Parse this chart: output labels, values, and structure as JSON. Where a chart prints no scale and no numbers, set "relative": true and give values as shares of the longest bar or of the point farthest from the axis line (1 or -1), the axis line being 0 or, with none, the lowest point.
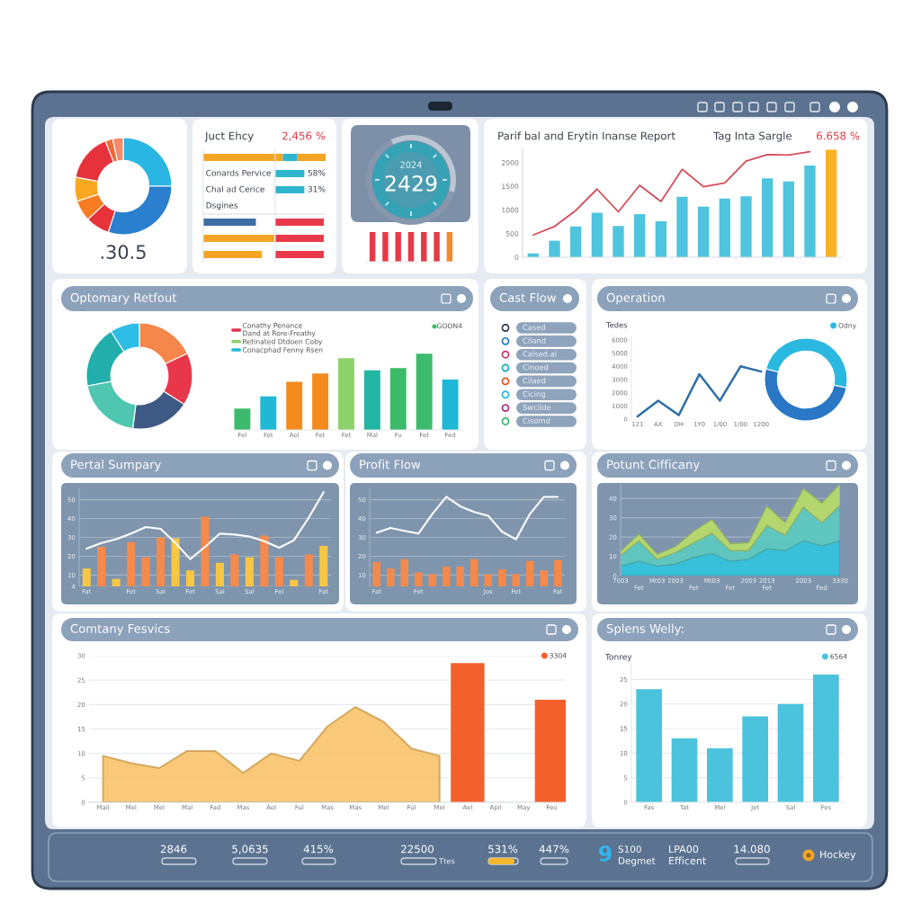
{
  "chart_data": [
    {
      "type": "donut",
      "categories": [
        null,
        null,
        null,
        null,
        null,
        null,
        null,
        null
      ],
      "values": [
        25,
        30,
        8,
        7,
        8,
        16,
        2.5,
        3.5
      ],
      "colors": [
        "#29b6e3",
        "#2b7fcf",
        "#e8333a",
        "#f57c20",
        "#f9a620",
        "#e5323b",
        "#f26b3a",
        "#f58b6c"
      ],
      "annotations": [
        ".30.5"
      ]
    },
    {
      "type": "bar",
      "orientation": "horizontal",
      "stacked": true,
      "relative": true,
      "title": "Juct Ehcy",
      "subtitle": "2,456 %",
      "categories": [
        null,
        "Conards Pervice",
        "Chal ad Cerice",
        "Dsgines",
        null,
        null,
        null
      ],
      "series": [
        {
          "color": "#f5a524",
          "values": [
            0.65,
            null,
            null,
            null,
            null,
            0.58,
            0.48
          ]
        },
        {
          "color": "#3d6fa6",
          "values": [
            null,
            null,
            null,
            null,
            0.43,
            null,
            null
          ]
        },
        {
          "color": "#2fb6cf",
          "values": [
            0.12,
            null,
            null,
            null,
            null,
            null,
            null
          ]
        },
        {
          "color": "#f5a524",
          "values": [
            0.23,
            null,
            null,
            null,
            null,
            null,
            null
          ]
        }
      ]
    },
    {
      "type": "bar",
      "orientation": "horizontal",
      "relative": true,
      "categories": [
        null,
        null,
        null,
        null,
        null,
        null,
        null
      ],
      "series": [
        {
          "color": "#2fb6cf",
          "values": [
            null,
            0.6,
            0.6,
            null,
            null,
            null,
            null
          ]
        },
        {
          "color": "#e8394a",
          "values": [
            null,
            null,
            null,
            null,
            1,
            1,
            1
          ]
        }
      ],
      "annotations": [
        "58%",
        "31%"
      ]
    },
    {
      "type": "donut",
      "categories": [
        null,
        null
      ],
      "values": [
        37,
        63
      ],
      "colors": [
        "#bcc6d3",
        "#8798ae"
      ],
      "annotations": [
        "2024",
        "2429"
      ]
    },
    {
      "type": "bar",
      "relative": true,
      "categories": [
        null,
        null,
        null,
        null,
        null,
        null,
        null
      ],
      "values": [
        1,
        1,
        1,
        1,
        1,
        1,
        1
      ],
      "colors": [
        "#e63a46",
        "#e63a46",
        "#e63a46",
        "#e63a46",
        "#e63a46",
        "#e63a46",
        "#f28a2e"
      ]
    },
    {
      "type": "bar",
      "title": "Parif bal and Erytin Inanse Report",
      "subtitle": "Tag Inta Sargle",
      "annotations": [
        "6.658 %"
      ],
      "categories": [
        null,
        null,
        null,
        null,
        null,
        null,
        null,
        null,
        null,
        null,
        null,
        null,
        null,
        null,
        null
      ],
      "series": [
        {
          "type": "bar",
          "colors": [
            "#4fc4df",
            "#4fc4df",
            "#4fc4df",
            "#4fc4df",
            "#4fc4df",
            "#4fc4df",
            "#4fc4df",
            "#4fc4df",
            "#4fc4df",
            "#4fc4df",
            "#4fc4df",
            "#4fc4df",
            "#4fc4df",
            "#4fc4df",
            "#f9b126"
          ],
          "values": [
            80,
            350,
            650,
            940,
            660,
            910,
            760,
            1280,
            1070,
            1240,
            1290,
            1670,
            1600,
            1940,
            2270
          ]
        },
        {
          "type": "line",
          "color": "#d34d5a",
          "values": [
            470,
            650,
            990,
            1440,
            960,
            1520,
            1180,
            1860,
            1490,
            1570,
            2030,
            2170,
            2160,
            2230,
            null
          ]
        }
      ],
      "ylim": [
        0,
        2300
      ],
      "yticks": [
        0,
        500,
        1000,
        1500,
        2000
      ]
    },
    {
      "type": "donut",
      "title": "Optomary Retfout",
      "categories": [
        null,
        null,
        null,
        null,
        null,
        null
      ],
      "values": [
        18,
        16,
        18,
        20,
        19,
        9
      ],
      "colors": [
        "#f5874a",
        "#e8364a",
        "#3e5a84",
        "#4fc7b0",
        "#22aeaa",
        "#2dbde6"
      ]
    },
    {
      "type": "bar",
      "relative": true,
      "legend": "top left",
      "annotations": [
        "GOON4"
      ],
      "categories": [
        "Fel",
        "Fet",
        "Aol",
        "Fet",
        "Fet",
        "Mal",
        "Fv",
        "Fet",
        "Fed"
      ],
      "series": [
        {
          "name": "Conathy Penance\nDand at Rore-Freathy",
          "color": "#e0344f",
          "values": [
            null,
            null,
            null,
            null,
            null,
            null,
            null,
            null,
            null
          ]
        },
        {
          "name": "Retinated Dtdoen Coby",
          "color": "#8dd16a",
          "values": [
            null,
            null,
            null,
            null,
            0.94,
            null,
            null,
            null,
            null
          ]
        },
        {
          "name": "Conacphad Fenny Rsen",
          "color": "#1fb8d6",
          "values": [
            null,
            0.44,
            null,
            null,
            null,
            null,
            null,
            null,
            0.66
          ]
        },
        {
          "color": "#3dbb6c",
          "values": [
            0.28,
            null,
            null,
            null,
            null,
            null,
            0.81,
            1,
            null
          ]
        },
        {
          "color": "#f58b1f",
          "values": [
            null,
            null,
            0.63,
            0.74,
            null,
            null,
            null,
            null,
            null
          ]
        },
        {
          "color": "#22b5a3",
          "values": [
            null,
            null,
            null,
            null,
            null,
            0.78,
            null,
            null,
            null
          ]
        }
      ]
    },
    {
      "type": "other",
      "title": "Cast Flow",
      "annotations": [
        "Cased",
        "Ciland",
        "Calsed.al",
        "Cinoed",
        "Cilaed",
        "Cicing",
        "Swcilde",
        "Cisomd"
      ]
    },
    {
      "type": "line",
      "title": "Operation",
      "ylabel": "Tedes",
      "categories": [
        "121",
        "AX",
        "OH",
        "1Y0",
        "1/00",
        "1/00",
        "1200"
      ],
      "values": [
        200,
        1400,
        300,
        3400,
        1400,
        4000,
        3600
      ],
      "color": "#2e6ea6",
      "ylim": [
        0,
        6200
      ],
      "yticks": [
        0,
        1000,
        2000,
        3000,
        4000,
        5000,
        6000
      ]
    },
    {
      "type": "donut",
      "legend": "top right",
      "categories": [
        "Odny",
        null
      ],
      "values": [
        49,
        51
      ],
      "colors": [
        "#2bb8e0",
        "#2a77c6"
      ]
    },
    {
      "type": "bar",
      "title": "Pertal Sumpary",
      "grid": "y",
      "categories": [
        "Fat",
        null,
        null,
        "Fet",
        null,
        "Sal",
        null,
        "Fet",
        null,
        "Sal",
        null,
        "Sal",
        null,
        "Fel",
        null,
        null,
        "Fat"
      ],
      "series": [
        {
          "type": "bar",
          "colors": [
            "#f7c744",
            "#f58a4c",
            "#f7c744",
            "#f58a4c",
            "#f58a4c",
            "#f58a4c",
            "#f7c744",
            "#f7c744",
            "#f58a4c",
            "#f7c744",
            "#f58a4c",
            "#f7c744",
            "#f58a4c",
            "#f58a4c",
            "#f7c744",
            "#f58a4c",
            "#f7c744"
          ],
          "values": [
            13.5,
            25,
            8,
            27.5,
            19.5,
            30,
            29.5,
            12.5,
            41,
            16.5,
            21,
            19.5,
            31,
            19.5,
            7.5,
            21,
            25.5
          ]
        },
        {
          "type": "line",
          "color": "#ffffff",
          "values": [
            24,
            27,
            29,
            32,
            35.5,
            34.5,
            27,
            18.5,
            25,
            32,
            31.5,
            30.5,
            28,
            24.5,
            28.5,
            40.5,
            54
          ]
        }
      ],
      "ylim": [
        4,
        56
      ],
      "yticks": [
        4,
        10,
        20,
        30,
        40,
        50
      ]
    },
    {
      "type": "bar",
      "title": "Profit Flow",
      "grid": "y",
      "categories": [
        "Fat",
        null,
        null,
        "Fet",
        null,
        null,
        null,
        null,
        "Jos",
        null,
        "Fet",
        null,
        null,
        "Fat"
      ],
      "series": [
        {
          "type": "bar",
          "color": "#f5894a",
          "values": [
            17,
            13.5,
            18.5,
            11.5,
            10.5,
            14.5,
            14.5,
            18.5,
            10.5,
            13,
            10.5,
            17.5,
            12.5,
            18
          ]
        },
        {
          "type": "line",
          "color": "#ffffff",
          "values": [
            32.5,
            35,
            33.5,
            32,
            42.5,
            51.5,
            46.5,
            43.5,
            41.5,
            33,
            29,
            42.5,
            51.5,
            51.5
          ]
        }
      ],
      "ylim": [
        4,
        56
      ],
      "yticks": [
        10,
        20,
        30,
        40,
        50
      ]
    },
    {
      "type": "area",
      "stacked": true,
      "title": "Potunt Cifficany",
      "grid": "y",
      "categories": [
        "7003",
        "\nFet",
        "Mt03",
        "2003",
        "\nFet",
        "Mt03",
        "\nFet",
        "2003",
        "2013\nFet",
        null,
        "2003",
        "\nFed",
        "3330"
      ],
      "series": [
        {
          "color": "#35c2dc",
          "values": [
            5,
            7.5,
            5,
            6,
            9.5,
            11.5,
            7.5,
            8.5,
            14,
            13,
            18,
            15.5,
            18
          ]
        },
        {
          "color": "#5ec8c0",
          "values": [
            5.5,
            10.5,
            3.5,
            6,
            7.5,
            10.5,
            5.5,
            4.5,
            12,
            8,
            17.5,
            12,
            18.5
          ]
        },
        {
          "color": "#b7d96c",
          "values": [
            2,
            3.5,
            2.5,
            3,
            6,
            7,
            3.5,
            4,
            10,
            6.5,
            9.5,
            10,
            11
          ]
        }
      ],
      "ylim": [
        0,
        48
      ],
      "yticks": [
        0,
        10,
        20,
        30,
        40
      ]
    },
    {
      "type": "area",
      "title": "Comtany Fesvics",
      "grid": "y",
      "legend": "top right",
      "categories": [
        "Mail",
        "Mel",
        "Mel",
        "Mal",
        "Fad",
        "Mas",
        "Aol",
        "Ful",
        "Mas",
        "Mas",
        "Mel",
        "Ful",
        "Mel",
        "Ael",
        "Apil",
        "May",
        "Feo"
      ],
      "series": [
        {
          "type": "area",
          "color": "#f8c062",
          "values": [
            9.5,
            8,
            7,
            10.5,
            10.5,
            6,
            10,
            8.5,
            15.5,
            19.5,
            16.5,
            11,
            9.5,
            null,
            null,
            null,
            null
          ]
        },
        {
          "type": "bar",
          "name": "3304",
          "color": "#f4602c",
          "values": [
            null,
            null,
            null,
            null,
            null,
            null,
            null,
            null,
            null,
            null,
            null,
            null,
            null,
            28.5,
            null,
            null,
            21
          ]
        }
      ],
      "ylim": [
        0,
        30
      ],
      "yticks": [
        0,
        5,
        10,
        15,
        20,
        25,
        30
      ]
    },
    {
      "type": "bar",
      "title": "Splens Welly:",
      "ylabel": "Tonrey",
      "grid": "y",
      "legend": "top right",
      "categories": [
        "Fas",
        "Tat",
        "Mel",
        "Jet",
        "Sal",
        "Fes"
      ],
      "series": [
        {
          "name": "6564",
          "color": "#4cc3dd",
          "values": [
            23,
            13,
            11,
            17.5,
            20,
            26
          ]
        }
      ],
      "ylim": [
        0,
        28
      ],
      "yticks": [
        0,
        5,
        10,
        15,
        20,
        25
      ]
    },
    {
      "type": "other",
      "annotations": [
        "2846",
        "5,0635",
        "415%",
        "22500",
        "Ttes",
        "531%",
        "447%",
        "9",
        "S100",
        "Degmet",
        "LPA00",
        "Efficent",
        "14.080",
        "Hockey"
      ]
    }
  ]
}
